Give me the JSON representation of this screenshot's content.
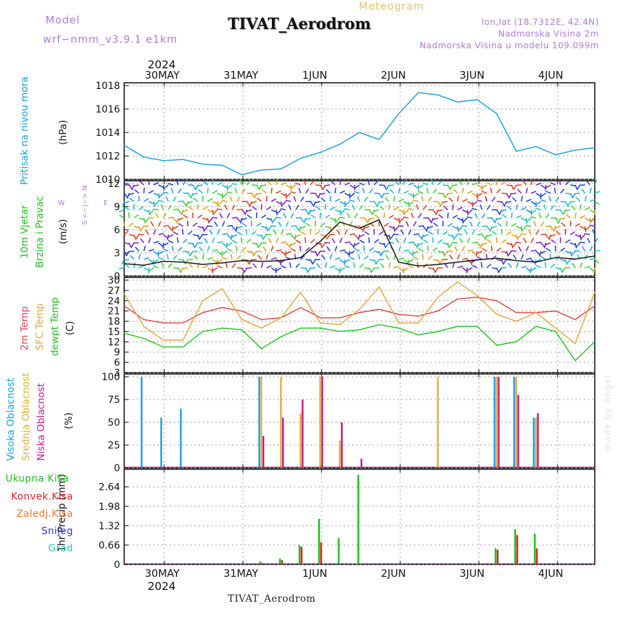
{
  "header": {
    "model_label": "Model",
    "model_name": "wrf−nmm_v3.9.1 e1km",
    "meteogram_label": "Meteogram",
    "station_title": "TIVAT_Aerodrom",
    "coords": "lon,lat (18.7312E, 42.4N)",
    "elevation": "Nadmorska Visina 2m",
    "model_elevation": "Nadmorska Visina u modelu 109.099m"
  },
  "footer": {
    "station": "TIVAT_Aerodrom",
    "watermark": "made by Angel"
  },
  "time_axis": {
    "year": "2024",
    "days": [
      "30MAY",
      "31MAY",
      "1JUN",
      "2JUN",
      "3JUN",
      "4JUN"
    ]
  },
  "colors": {
    "pressure": "#1aa0e0",
    "t2m": "#e04848",
    "sfc_temp": "#e0a840",
    "dewpoint": "#20c820",
    "high_cloud": "#20a0e8",
    "mid_cloud": "#e0b040",
    "low_cloud": "#c0208c",
    "total_precip": "#20c020",
    "conv_precip": "#e02020",
    "snow": "#3030e0",
    "graupel": "#20c8c8"
  },
  "panels": {
    "pressure": {
      "label1": "Pritisak na nivou mora",
      "unit": "(hPa)"
    },
    "wind": {
      "label1": "10m Vjetar",
      "label2": "Brzina i Pravac",
      "unit": "(m/s)",
      "compass_ns": "S <−|−> N",
      "compass_w": "W",
      "compass_e": "E"
    },
    "temp": {
      "label1": "2m Temp",
      "label2": "SFC Temp",
      "label3": "dewpt Temp",
      "unit": "(C)"
    },
    "cloud": {
      "label1": "Visoka Oblacnost",
      "label2": "Srednja Oblacnost",
      "label3": "Niska Oblacnost",
      "unit": "(%)"
    },
    "precip": {
      "legend": [
        "Ukupna Kisa",
        "Konvek.Kisa",
        "Zaledj.Kisa",
        "Snijeg",
        "Grad"
      ],
      "unit": "1hr Precip (mm)"
    }
  },
  "chart_data": [
    {
      "type": "line",
      "title": "Pritisak na nivou mora",
      "ylabel": "(hPa)",
      "ylim": [
        1010,
        1018
      ],
      "yticks": [
        "1010",
        "1012",
        "1014",
        "1016",
        "1018"
      ],
      "x_hours": [
        0,
        6,
        12,
        18,
        24,
        30,
        36,
        42,
        48,
        54,
        60,
        66,
        72,
        78,
        84,
        90,
        96,
        102,
        108,
        114,
        120,
        126,
        132,
        138,
        144
      ],
      "series": [
        {
          "values": [
            1012.9,
            1011.9,
            1011.6,
            1011.7,
            1011.3,
            1011.2,
            1010.4,
            1010.8,
            1010.9,
            1011.8,
            1012.3,
            1013.0,
            1014.0,
            1013.4,
            1015.6,
            1017.4,
            1017.2,
            1016.6,
            1016.8,
            1015.6,
            1012.4,
            1012.8,
            1012.1,
            1012.5,
            1012.7
          ]
        }
      ]
    },
    {
      "type": "line",
      "title": "10m Vjetar",
      "ylabel": "(m/s)",
      "ylim": [
        0,
        12
      ],
      "yticks": [
        "0",
        "3",
        "6",
        "9",
        "12"
      ],
      "x_hours": [
        0,
        6,
        12,
        18,
        24,
        30,
        36,
        42,
        48,
        54,
        60,
        66,
        72,
        78,
        84,
        90,
        96,
        102,
        108,
        114,
        120,
        126,
        132,
        138,
        144
      ],
      "series": [
        {
          "values": [
            1.6,
            1.4,
            1.9,
            1.8,
            1.5,
            1.7,
            2.0,
            1.9,
            2.0,
            2.4,
            4.5,
            7.0,
            6.2,
            7.3,
            1.8,
            1.3,
            1.5,
            1.8,
            2.1,
            2.3,
            2.0,
            1.8,
            2.4,
            2.2,
            2.6
          ]
        }
      ]
    },
    {
      "type": "line",
      "title": "2m Temp / SFC Temp / dewpt Temp",
      "ylabel": "(C)",
      "ylim": [
        3,
        30
      ],
      "yticks": [
        "3",
        "6",
        "9",
        "12",
        "15",
        "18",
        "21",
        "24",
        "27",
        "30"
      ],
      "x_hours": [
        0,
        6,
        12,
        18,
        24,
        30,
        36,
        42,
        48,
        54,
        60,
        66,
        72,
        78,
        84,
        90,
        96,
        102,
        108,
        114,
        120,
        126,
        132,
        138,
        144
      ],
      "series": [
        {
          "name": "2m Temp",
          "values": [
            22.5,
            18.5,
            17.5,
            17.5,
            20.5,
            22.0,
            21.0,
            18.5,
            19.0,
            22.0,
            19.0,
            19.0,
            20.5,
            21.5,
            20.0,
            19.5,
            21.0,
            24.5,
            25.0,
            24.0,
            20.5,
            20.5,
            21.0,
            18.5,
            22.5
          ]
        },
        {
          "name": "SFC Temp",
          "values": [
            26.0,
            16.5,
            12.5,
            12.5,
            24.0,
            27.5,
            18.5,
            16.0,
            19.0,
            26.5,
            17.5,
            17.0,
            21.5,
            28.0,
            17.5,
            17.5,
            25.0,
            29.5,
            25.5,
            20.0,
            18.0,
            20.5,
            16.0,
            11.5,
            26.5
          ]
        },
        {
          "name": "dewpt Temp",
          "values": [
            14.5,
            13.0,
            10.5,
            10.5,
            15.0,
            16.0,
            15.5,
            10.0,
            13.5,
            16.0,
            16.0,
            15.0,
            15.5,
            17.0,
            16.0,
            14.0,
            15.0,
            16.5,
            16.5,
            11.0,
            12.0,
            16.5,
            15.0,
            6.5,
            12.0
          ]
        }
      ]
    },
    {
      "type": "bar",
      "title": "Visoka / Srednja / Niska Oblacnost",
      "ylabel": "(%)",
      "ylim": [
        0,
        100
      ],
      "yticks": [
        "0",
        "25",
        "50",
        "75",
        "100"
      ],
      "x_hours": [
        0,
        6,
        12,
        18,
        24,
        30,
        36,
        42,
        48,
        54,
        60,
        66,
        72,
        78,
        84,
        90,
        96,
        102,
        108,
        114,
        120,
        126,
        132,
        138,
        144
      ],
      "series": [
        {
          "name": "Visoka Oblacnost",
          "values": [
            0,
            100,
            55,
            65,
            0,
            0,
            0,
            100,
            0,
            0,
            0,
            0,
            0,
            0,
            0,
            0,
            0,
            0,
            0,
            100,
            100,
            55,
            0,
            0,
            0
          ]
        },
        {
          "name": "Srednja Oblacnost",
          "values": [
            0,
            0,
            0,
            0,
            0,
            0,
            0,
            100,
            100,
            60,
            100,
            30,
            0,
            0,
            0,
            0,
            100,
            0,
            0,
            100,
            100,
            55,
            0,
            0,
            0
          ]
        },
        {
          "name": "Niska Oblacnost",
          "values": [
            0,
            0,
            0,
            0,
            0,
            0,
            0,
            35,
            55,
            75,
            100,
            50,
            10,
            0,
            0,
            0,
            0,
            0,
            0,
            100,
            80,
            60,
            0,
            0,
            0
          ]
        }
      ]
    },
    {
      "type": "bar",
      "title": "1hr Precip",
      "ylabel": "1hr Precip (mm)",
      "ylim": [
        0,
        3.15
      ],
      "yticks": [
        "0",
        "0.66",
        "1.32",
        "1.98",
        "2.64"
      ],
      "x_hours": [
        0,
        6,
        12,
        18,
        24,
        30,
        36,
        42,
        48,
        54,
        60,
        66,
        72,
        78,
        84,
        90,
        96,
        102,
        108,
        114,
        120,
        126,
        132,
        138,
        144
      ],
      "series": [
        {
          "name": "Ukupna Kisa",
          "values": [
            0,
            0,
            0,
            0,
            0,
            0,
            0,
            0.1,
            0.2,
            0.65,
            1.55,
            0.9,
            3.05,
            0,
            0,
            0,
            0,
            0,
            0,
            0.55,
            1.2,
            1.05,
            0,
            0,
            0
          ]
        },
        {
          "name": "Konvek.Kisa",
          "values": [
            0,
            0,
            0,
            0,
            0,
            0,
            0,
            0.05,
            0.15,
            0.6,
            0.75,
            0,
            0,
            0,
            0,
            0,
            0,
            0,
            0,
            0.5,
            1.0,
            0.55,
            0,
            0,
            0
          ]
        }
      ]
    }
  ]
}
